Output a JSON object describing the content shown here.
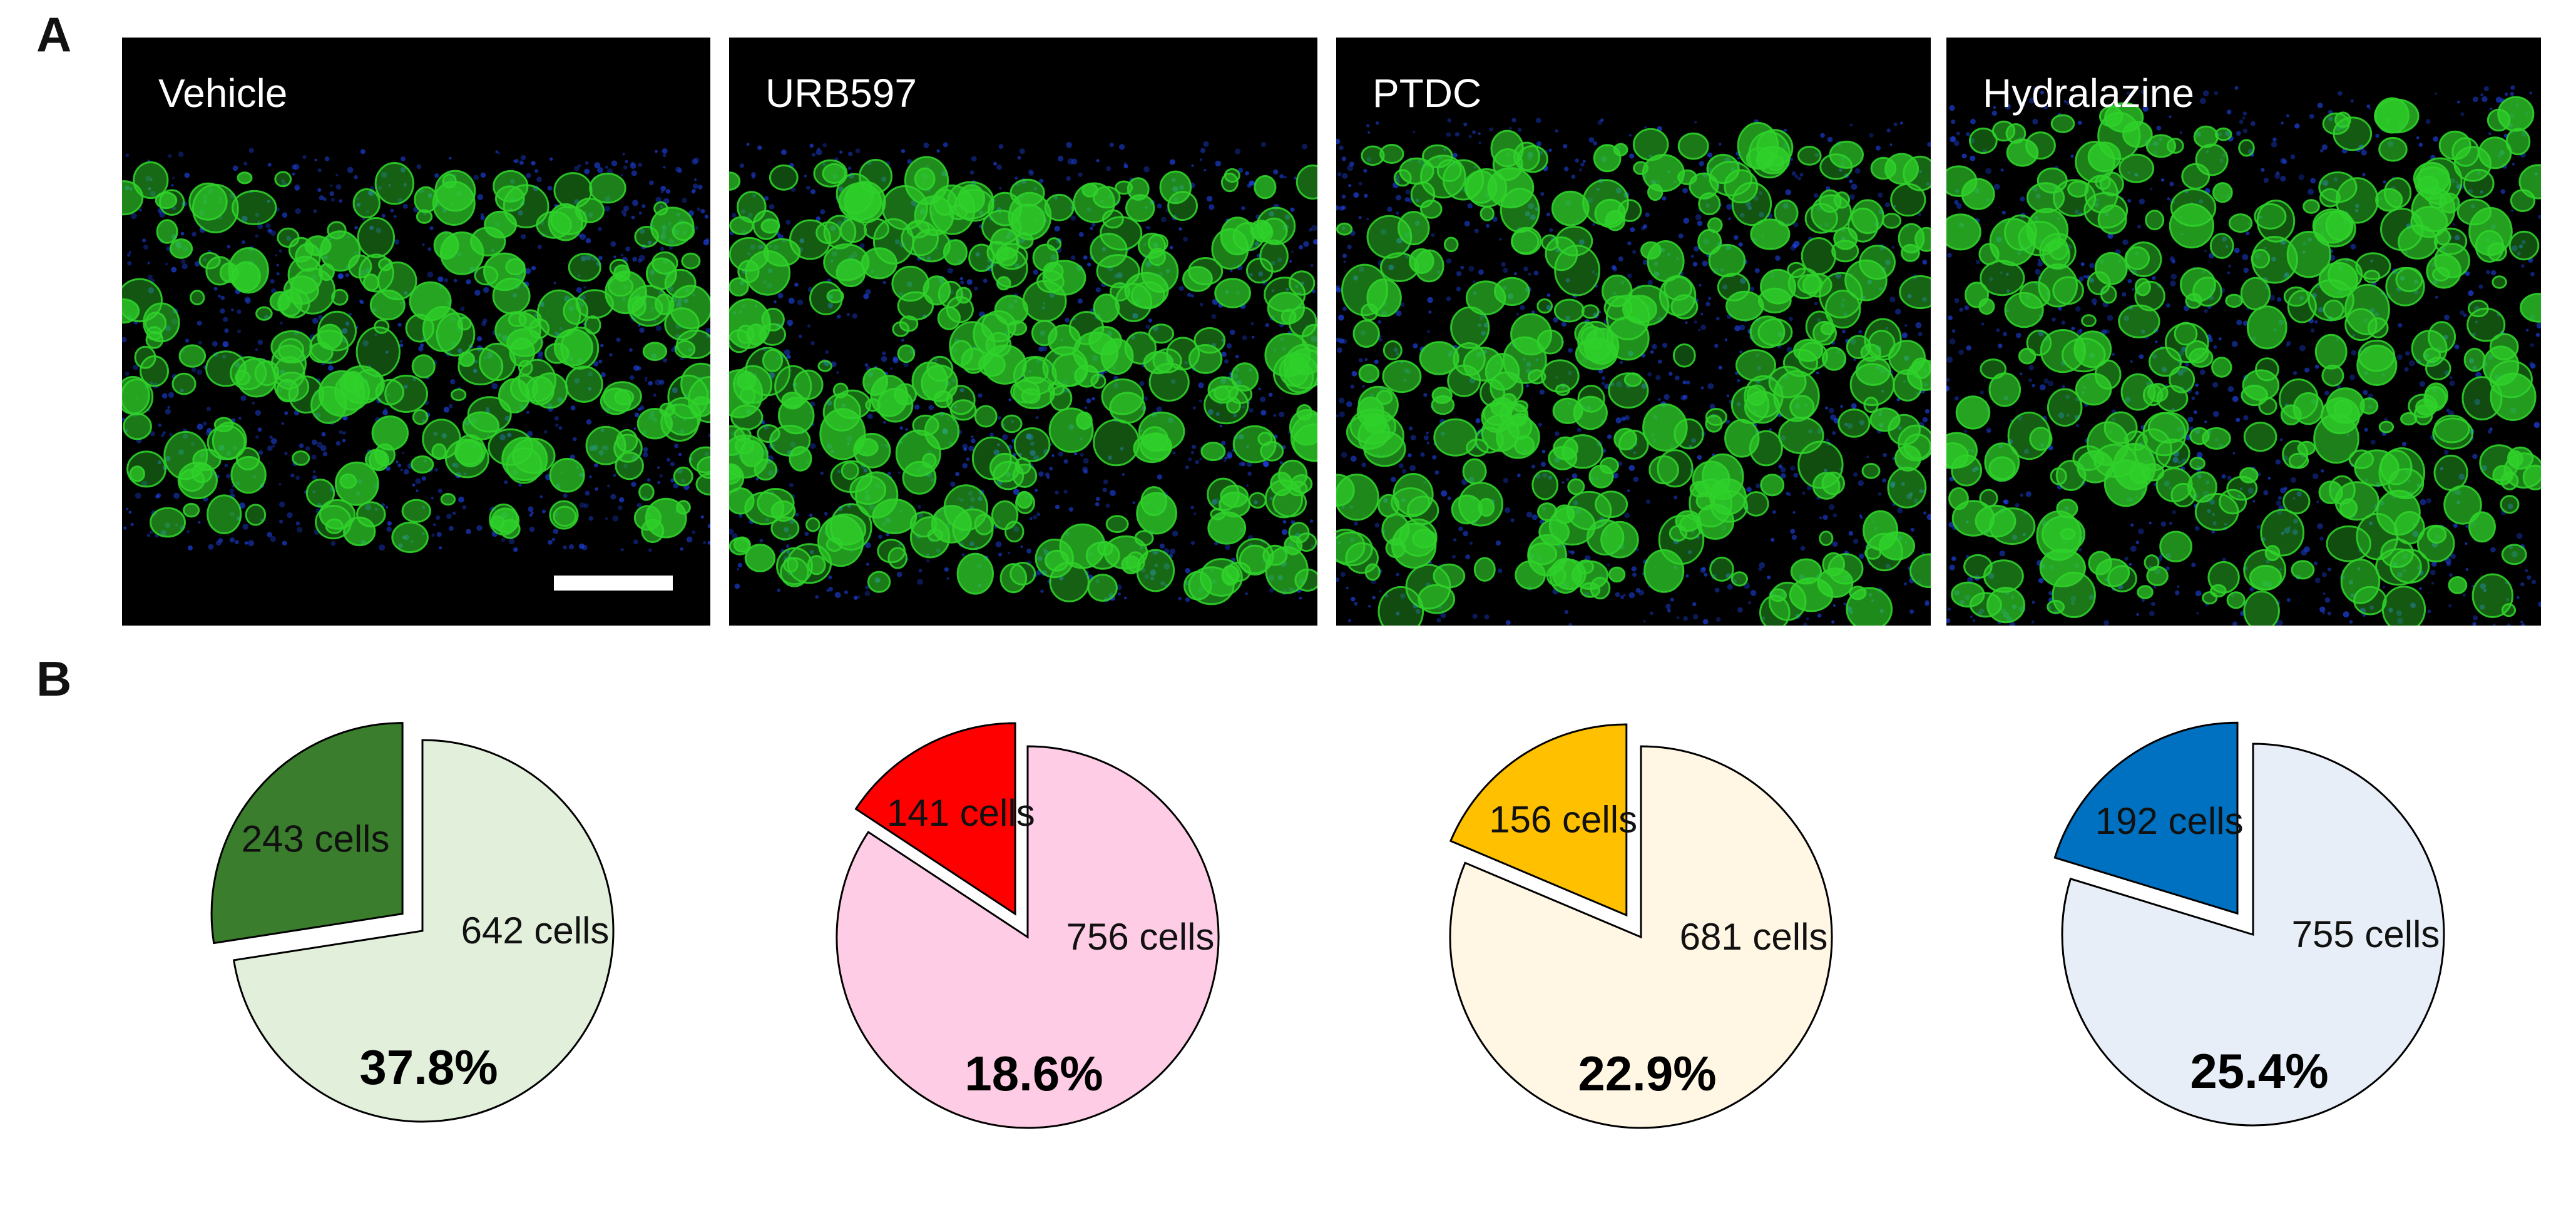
{
  "panels": {
    "A_label": "A",
    "B_label": "B"
  },
  "micrographs": [
    {
      "label": "Vehicle",
      "has_scale_bar": true
    },
    {
      "label": "URB597",
      "has_scale_bar": false
    },
    {
      "label": "PTDC",
      "has_scale_bar": false
    },
    {
      "label": "Hydralazine",
      "has_scale_bar": false
    }
  ],
  "colors": {
    "cell_green": "#2fd12a",
    "nuclei_blue": "#1c3fd6"
  },
  "chart_data": [
    {
      "type": "pie",
      "slices": [
        {
          "label": "243 cells",
          "value": 243,
          "color": "#3a7d2c",
          "exploded": true
        },
        {
          "label": "642 cells",
          "value": 642,
          "color": "#e2efda",
          "exploded": false
        }
      ],
      "percent_label": "37.8%"
    },
    {
      "type": "pie",
      "slices": [
        {
          "label": "141 cells",
          "value": 141,
          "color": "#ff0000",
          "exploded": true
        },
        {
          "label": "756 cells",
          "value": 756,
          "color": "#ffcce6",
          "exploded": false
        }
      ],
      "percent_label": "18.6%"
    },
    {
      "type": "pie",
      "slices": [
        {
          "label": "156 cells",
          "value": 156,
          "color": "#ffc000",
          "exploded": true
        },
        {
          "label": "681 cells",
          "value": 681,
          "color": "#fff6e4",
          "exploded": false
        }
      ],
      "percent_label": "22.9%"
    },
    {
      "type": "pie",
      "slices": [
        {
          "label": "192 cells",
          "value": 192,
          "color": "#0070c0",
          "exploded": true
        },
        {
          "label": "755 cells",
          "value": 755,
          "color": "#e8eef8",
          "exploded": false
        }
      ],
      "percent_label": "25.4%"
    }
  ]
}
